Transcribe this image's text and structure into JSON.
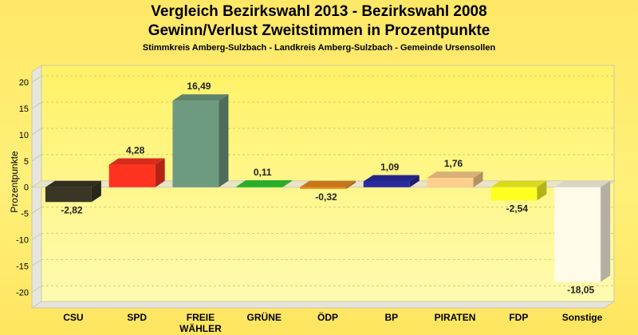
{
  "header": {
    "title_line1": "Vergleich Bezirkswahl 2013 - Bezirkswahl 2008",
    "title_line2": "Gewinn/Verlust Zweitstimmen in Prozentpunkte",
    "subtitle": "Stimmkreis Amberg-Sulzbach - Landkreis Amberg-Sulzbach - Gemeinde Ursensollen"
  },
  "chart_data": {
    "type": "bar",
    "title": "Vergleich Bezirkswahl 2013 - Bezirkswahl 2008 / Gewinn/Verlust Zweitstimmen in Prozentpunkte",
    "xlabel": "",
    "ylabel": "Prozentpunkte",
    "ylim": [
      -23,
      22
    ],
    "yticks": [
      20,
      15,
      10,
      5,
      0,
      -5,
      -10,
      -15,
      -20
    ],
    "categories": [
      "CSU",
      "SPD",
      "FREIE\nWÄHLER",
      "GRÜNE",
      "ÖDP",
      "BP",
      "PIRATEN",
      "FDP",
      "Sonstige"
    ],
    "values": [
      -2.82,
      4.28,
      16.49,
      0.11,
      -0.32,
      1.09,
      1.76,
      -2.54,
      -18.05
    ],
    "value_labels": [
      "-2,82",
      "4,28",
      "16,49",
      "0,11",
      "-0,32",
      "1,09",
      "1,76",
      "-2,54",
      "-18,05"
    ],
    "colors": [
      "#3a3626",
      "#ff3320",
      "#6e9a80",
      "#33cc33",
      "#e88c1e",
      "#2a2aa0",
      "#ffcf8c",
      "#ffff22",
      "#fffbe8"
    ],
    "grid": true
  }
}
